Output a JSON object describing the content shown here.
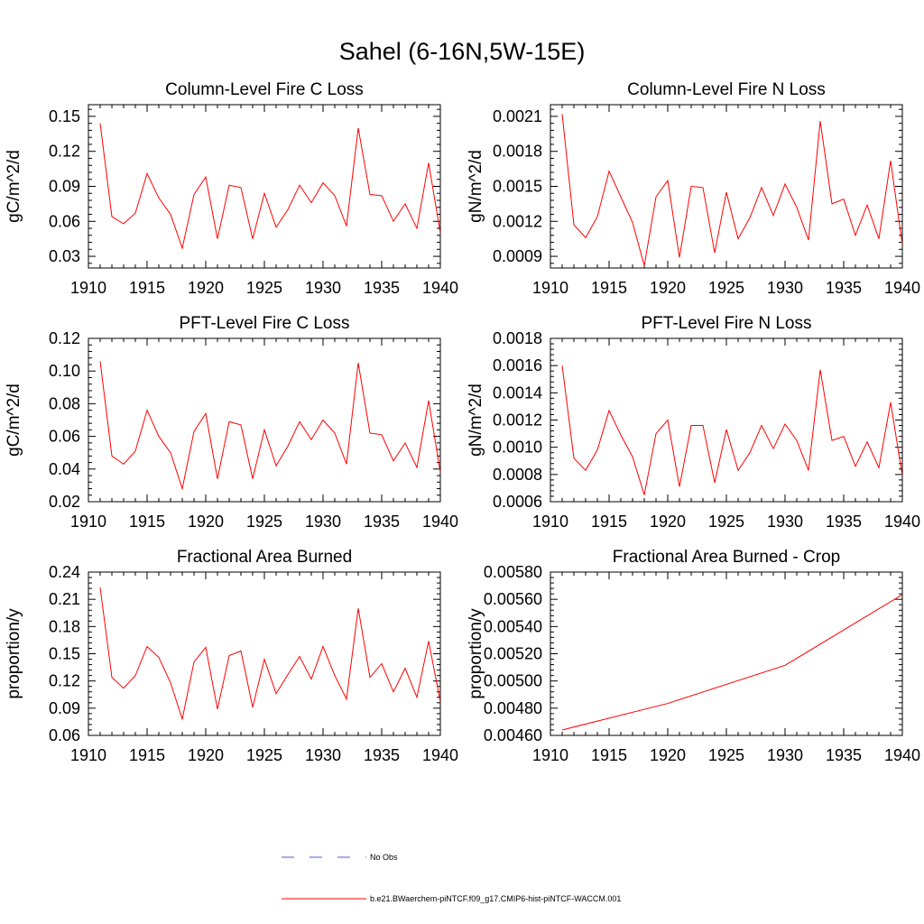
{
  "figure": {
    "title": "Sahel (6-16N,5W-15E)"
  },
  "colors": {
    "model_line": "#ff0000",
    "obs_line": "#4a5bd6",
    "axes": "#000000"
  },
  "legend": {
    "obs_label": "No Obs",
    "model_label": "b.e21.BWaerchem-piNTCF.f09_g17.CMIP6-hist-piNTCF-WACCM.001"
  },
  "chart_data": [
    {
      "type": "line",
      "title": "Column-Level Fire C Loss",
      "ylabel": "gC/m^2/d",
      "xlim": [
        1910,
        1940
      ],
      "ylim": [
        0.02,
        0.16
      ],
      "xticks": [
        1910,
        1915,
        1920,
        1925,
        1930,
        1935,
        1940
      ],
      "xtick_labels": [
        "1910",
        "1915",
        "1920",
        "1925",
        "1930",
        "1935",
        "1940"
      ],
      "yticks": [
        0.03,
        0.06,
        0.09,
        0.12,
        0.15
      ],
      "ytick_labels": [
        "0.03",
        "0.06",
        "0.09",
        "0.12",
        "0.15"
      ],
      "series": [
        {
          "color": "#ff0000",
          "x": [
            1911,
            1912,
            1913,
            1914,
            1915,
            1916,
            1917,
            1918,
            1919,
            1920,
            1921,
            1922,
            1923,
            1924,
            1925,
            1926,
            1927,
            1928,
            1929,
            1930,
            1931,
            1932,
            1933,
            1934,
            1935,
            1936,
            1937,
            1938,
            1939,
            1940
          ],
          "y": [
            0.144,
            0.064,
            0.058,
            0.067,
            0.101,
            0.08,
            0.066,
            0.037,
            0.083,
            0.098,
            0.045,
            0.091,
            0.089,
            0.045,
            0.084,
            0.055,
            0.07,
            0.091,
            0.076,
            0.093,
            0.082,
            0.056,
            0.14,
            0.083,
            0.082,
            0.06,
            0.075,
            0.054,
            0.11,
            0.05
          ]
        }
      ]
    },
    {
      "type": "line",
      "title": "Column-Level Fire N Loss",
      "ylabel": "gN/m^2/d",
      "xlim": [
        1910,
        1940
      ],
      "ylim": [
        0.0008,
        0.0022
      ],
      "xticks": [
        1910,
        1915,
        1920,
        1925,
        1930,
        1935,
        1940
      ],
      "xtick_labels": [
        "1910",
        "1915",
        "1920",
        "1925",
        "1930",
        "1935",
        "1940"
      ],
      "yticks": [
        0.0009,
        0.0012,
        0.0015,
        0.0018,
        0.0021
      ],
      "ytick_labels": [
        "0.0009",
        "0.0012",
        "0.0015",
        "0.0018",
        "0.0021"
      ],
      "series": [
        {
          "color": "#ff0000",
          "x": [
            1911,
            1912,
            1913,
            1914,
            1915,
            1916,
            1917,
            1918,
            1919,
            1920,
            1921,
            1922,
            1923,
            1924,
            1925,
            1926,
            1927,
            1928,
            1929,
            1930,
            1931,
            1932,
            1933,
            1934,
            1935,
            1936,
            1937,
            1938,
            1939,
            1940
          ],
          "y": [
            0.00212,
            0.00117,
            0.00106,
            0.00124,
            0.00163,
            0.00141,
            0.00119,
            0.00082,
            0.00141,
            0.00155,
            0.00089,
            0.0015,
            0.00149,
            0.00093,
            0.00145,
            0.00105,
            0.00123,
            0.00149,
            0.00125,
            0.00152,
            0.00132,
            0.00104,
            0.00206,
            0.00135,
            0.00139,
            0.00108,
            0.00134,
            0.00105,
            0.00172,
            0.001
          ]
        }
      ]
    },
    {
      "type": "line",
      "title": "PFT-Level Fire C Loss",
      "ylabel": "gC/m^2/d",
      "xlim": [
        1910,
        1940
      ],
      "ylim": [
        0.02,
        0.12
      ],
      "xticks": [
        1910,
        1915,
        1920,
        1925,
        1930,
        1935,
        1940
      ],
      "xtick_labels": [
        "1910",
        "1915",
        "1920",
        "1925",
        "1930",
        "1935",
        "1940"
      ],
      "yticks": [
        0.02,
        0.04,
        0.06,
        0.08,
        0.1,
        0.12
      ],
      "ytick_labels": [
        "0.02",
        "0.04",
        "0.06",
        "0.08",
        "0.10",
        "0.12"
      ],
      "series": [
        {
          "color": "#ff0000",
          "x": [
            1911,
            1912,
            1913,
            1914,
            1915,
            1916,
            1917,
            1918,
            1919,
            1920,
            1921,
            1922,
            1923,
            1924,
            1925,
            1926,
            1927,
            1928,
            1929,
            1930,
            1931,
            1932,
            1933,
            1934,
            1935,
            1936,
            1937,
            1938,
            1939,
            1940
          ],
          "y": [
            0.106,
            0.048,
            0.043,
            0.051,
            0.076,
            0.06,
            0.05,
            0.028,
            0.063,
            0.074,
            0.034,
            0.069,
            0.067,
            0.034,
            0.064,
            0.042,
            0.054,
            0.069,
            0.058,
            0.07,
            0.062,
            0.043,
            0.105,
            0.062,
            0.061,
            0.045,
            0.056,
            0.041,
            0.082,
            0.038
          ]
        }
      ]
    },
    {
      "type": "line",
      "title": "PFT-Level Fire N Loss",
      "ylabel": "gN/m^2/d",
      "xlim": [
        1910,
        1940
      ],
      "ylim": [
        0.0006,
        0.0018
      ],
      "xticks": [
        1910,
        1915,
        1920,
        1925,
        1930,
        1935,
        1940
      ],
      "xtick_labels": [
        "1910",
        "1915",
        "1920",
        "1925",
        "1930",
        "1935",
        "1940"
      ],
      "yticks": [
        0.0006,
        0.0008,
        0.001,
        0.0012,
        0.0014,
        0.0016,
        0.0018
      ],
      "ytick_labels": [
        "0.0006",
        "0.0008",
        "0.0010",
        "0.0012",
        "0.0014",
        "0.0016",
        "0.0018"
      ],
      "series": [
        {
          "color": "#ff0000",
          "x": [
            1911,
            1912,
            1913,
            1914,
            1915,
            1916,
            1917,
            1918,
            1919,
            1920,
            1921,
            1922,
            1923,
            1924,
            1925,
            1926,
            1927,
            1928,
            1929,
            1930,
            1931,
            1932,
            1933,
            1934,
            1935,
            1936,
            1937,
            1938,
            1939,
            1940
          ],
          "y": [
            0.0016,
            0.00092,
            0.00083,
            0.00098,
            0.00127,
            0.00109,
            0.00093,
            0.00065,
            0.0011,
            0.0012,
            0.00071,
            0.00116,
            0.00116,
            0.00074,
            0.00113,
            0.00083,
            0.00096,
            0.00116,
            0.00099,
            0.00117,
            0.00105,
            0.00083,
            0.00157,
            0.00105,
            0.00108,
            0.00086,
            0.00104,
            0.00085,
            0.00133,
            0.00079
          ]
        }
      ]
    },
    {
      "type": "line",
      "title": "Fractional Area Burned",
      "ylabel": "proportion/y",
      "xlim": [
        1910,
        1940
      ],
      "ylim": [
        0.06,
        0.24
      ],
      "xticks": [
        1910,
        1915,
        1920,
        1925,
        1930,
        1935,
        1940
      ],
      "xtick_labels": [
        "1910",
        "1915",
        "1920",
        "1925",
        "1930",
        "1935",
        "1940"
      ],
      "yticks": [
        0.06,
        0.09,
        0.12,
        0.15,
        0.18,
        0.21,
        0.24
      ],
      "ytick_labels": [
        "0.06",
        "0.09",
        "0.12",
        "0.15",
        "0.18",
        "0.21",
        "0.24"
      ],
      "series": [
        {
          "color": "#ff0000",
          "x": [
            1911,
            1912,
            1913,
            1914,
            1915,
            1916,
            1917,
            1918,
            1919,
            1920,
            1921,
            1922,
            1923,
            1924,
            1925,
            1926,
            1927,
            1928,
            1929,
            1930,
            1931,
            1932,
            1933,
            1934,
            1935,
            1936,
            1937,
            1938,
            1939,
            1940
          ],
          "y": [
            0.223,
            0.124,
            0.112,
            0.126,
            0.158,
            0.146,
            0.118,
            0.078,
            0.141,
            0.157,
            0.089,
            0.148,
            0.153,
            0.091,
            0.144,
            0.106,
            0.127,
            0.147,
            0.122,
            0.158,
            0.126,
            0.1,
            0.2,
            0.124,
            0.139,
            0.108,
            0.134,
            0.102,
            0.164,
            0.097
          ]
        }
      ]
    },
    {
      "type": "line",
      "title": "Fractional Area Burned - Crop",
      "ylabel": "proportion/y",
      "xlim": [
        1910,
        1940
      ],
      "ylim": [
        0.0046,
        0.0058
      ],
      "xticks": [
        1910,
        1915,
        1920,
        1925,
        1930,
        1935,
        1940
      ],
      "xtick_labels": [
        "1910",
        "1915",
        "1920",
        "1925",
        "1930",
        "1935",
        "1940"
      ],
      "yticks": [
        0.0046,
        0.0048,
        0.005,
        0.0052,
        0.0054,
        0.0056,
        0.0058
      ],
      "ytick_labels": [
        "0.00460",
        "0.00480",
        "0.00500",
        "0.00520",
        "0.00540",
        "0.00560",
        "0.00580"
      ],
      "series": [
        {
          "color": "#ff0000",
          "x": [
            1911,
            1920,
            1930,
            1940
          ],
          "y": [
            0.00464,
            0.004835,
            0.005115,
            0.005635
          ]
        }
      ]
    }
  ]
}
